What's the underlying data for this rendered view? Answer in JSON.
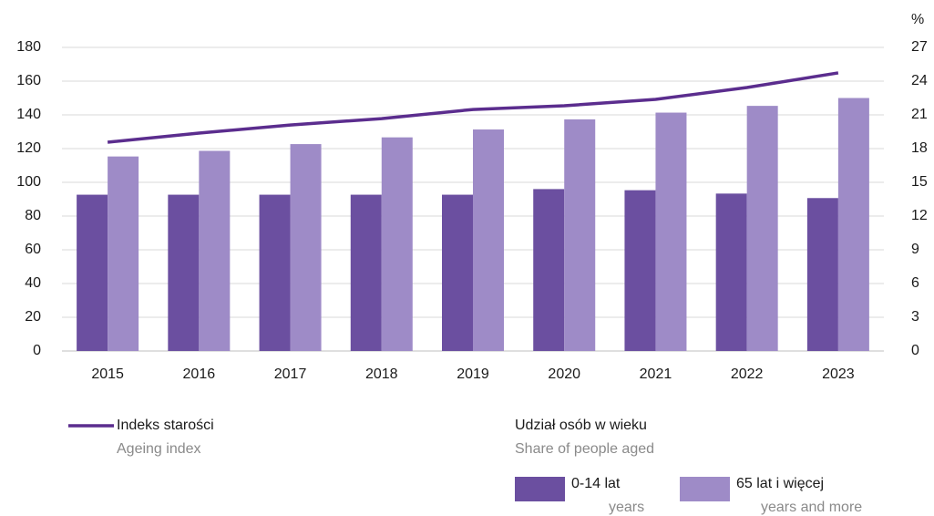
{
  "chart_data": {
    "type": "bar_line",
    "categories": [
      "2015",
      "2016",
      "2017",
      "2018",
      "2019",
      "2020",
      "2021",
      "2022",
      "2023"
    ],
    "series": [
      {
        "name": "Indeks starości",
        "subname": "Ageing index",
        "color": "#5b2d8e",
        "kind": "line",
        "axis": "y",
        "values": [
          123.8,
          129.2,
          134.0,
          137.8,
          143.2,
          145.4,
          149.2,
          156.2,
          164.9
        ]
      },
      {
        "name": "0-14 lat",
        "subname": "years",
        "color": "#6b4fa0",
        "kind": "bar",
        "axis": "y2",
        "values": [
          13.9,
          13.9,
          13.9,
          13.9,
          13.9,
          14.4,
          14.3,
          14.0,
          13.6
        ]
      },
      {
        "name": "65 lat i więcej",
        "subname": "years and more",
        "color": "#9e8bc7",
        "kind": "bar",
        "axis": "y2",
        "values": [
          17.3,
          17.8,
          18.4,
          19.0,
          19.7,
          20.6,
          21.2,
          21.8,
          22.5
        ]
      }
    ],
    "bar_legend_title": "Udział osób w wieku",
    "bar_legend_subtitle": "Share of people aged",
    "y2_unit": "%",
    "ylim": [
      0,
      180
    ],
    "yticks": [
      0,
      20,
      40,
      60,
      80,
      100,
      120,
      140,
      160,
      180
    ],
    "y2lim": [
      0,
      27
    ],
    "y2ticks": [
      0,
      3,
      6,
      9,
      12,
      15,
      18,
      21,
      24,
      27
    ],
    "grid": true
  }
}
